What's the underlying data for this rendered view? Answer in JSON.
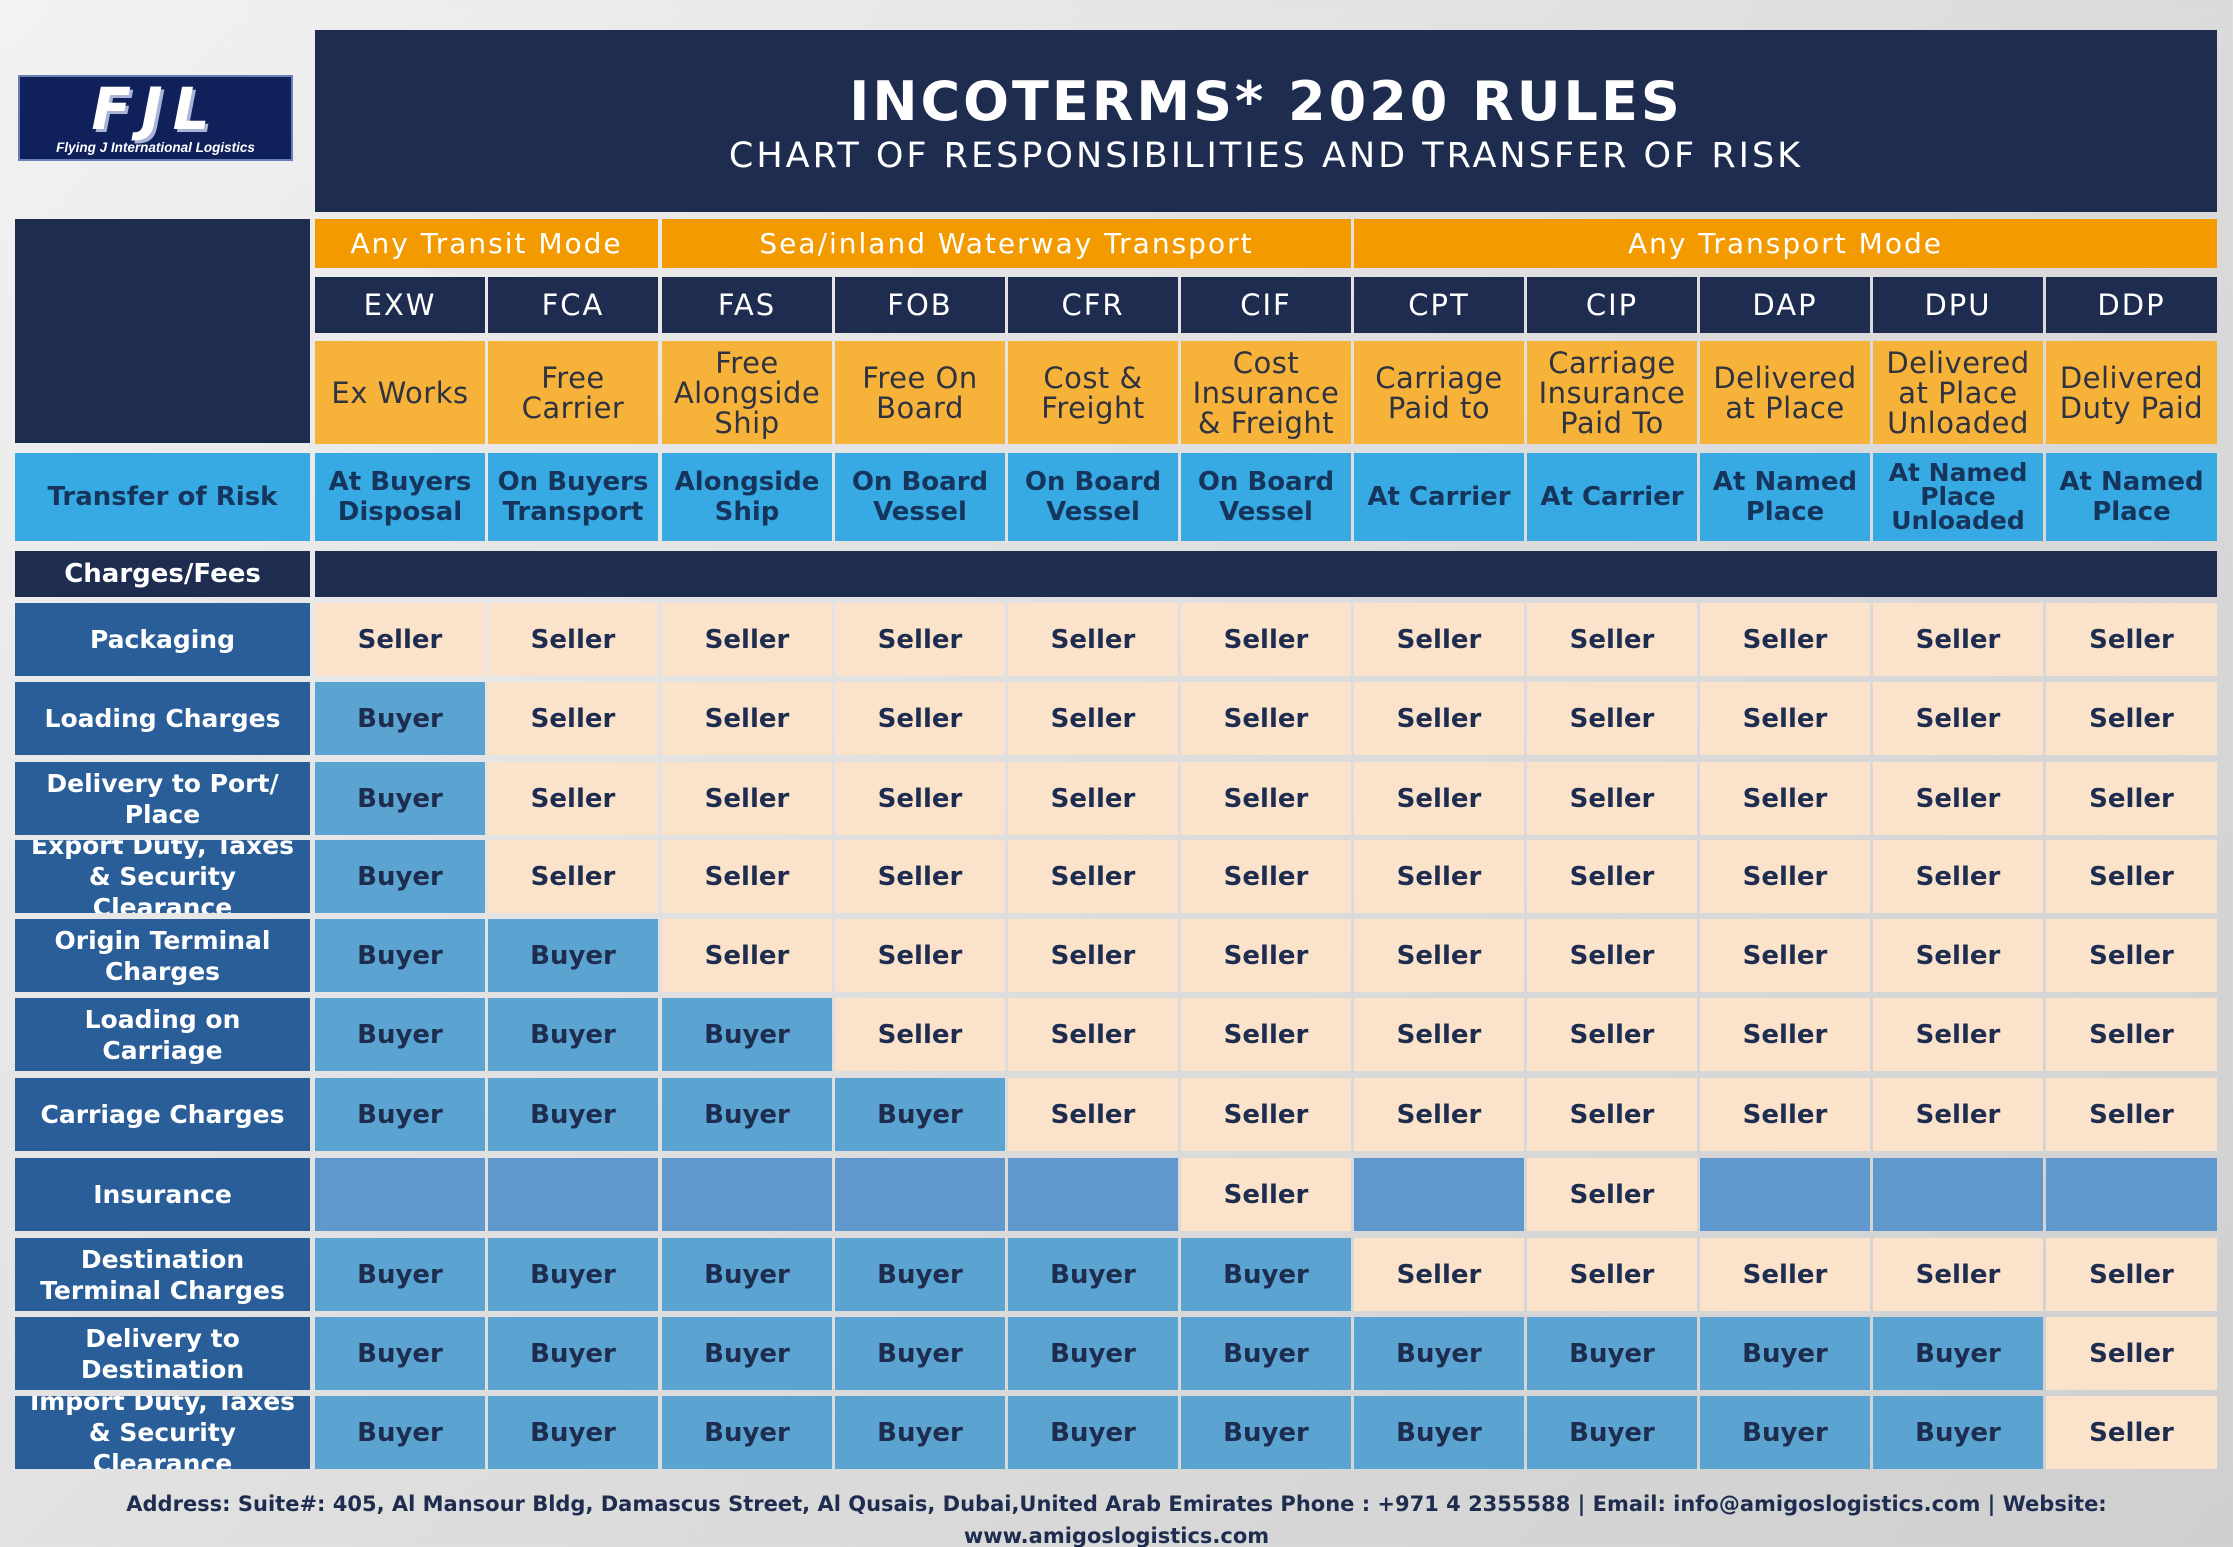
{
  "logo": {
    "mark": "FJL",
    "company": "Flying J International Logistics"
  },
  "header": {
    "title": "INCOTERMS* 2020 RULES",
    "subtitle": "CHART OF RESPONSIBILITIES AND TRANSFER OF RISK"
  },
  "groups": [
    "Any Transit Mode",
    "Sea/inland Waterway Transport",
    "Any Transport Mode"
  ],
  "terms": [
    {
      "code": "EXW",
      "name": "Ex Works",
      "risk": "At Buyers\nDisposal"
    },
    {
      "code": "FCA",
      "name": "Free\nCarrier",
      "risk": "On Buyers\nTransport"
    },
    {
      "code": "FAS",
      "name": "Free\nAlongside\nShip",
      "risk": "Alongside\nShip"
    },
    {
      "code": "FOB",
      "name": "Free On\nBoard",
      "risk": "On Board\nVessel"
    },
    {
      "code": "CFR",
      "name": "Cost &\nFreight",
      "risk": "On Board\nVessel"
    },
    {
      "code": "CIF",
      "name": "Cost\nInsurance\n& Freight",
      "risk": "On Board\nVessel"
    },
    {
      "code": "CPT",
      "name": "Carriage\nPaid to",
      "risk": "At Carrier"
    },
    {
      "code": "CIP",
      "name": "Carriage\nInsurance\nPaid To",
      "risk": "At Carrier"
    },
    {
      "code": "DAP",
      "name": "Delivered\nat Place",
      "risk": "At Named\nPlace"
    },
    {
      "code": "DPU",
      "name": "Delivered\nat Place\nUnloaded",
      "risk": "At Named\nPlace\nUnloaded"
    },
    {
      "code": "DDP",
      "name": "Delivered\nDuty Paid",
      "risk": "At Named\nPlace"
    }
  ],
  "risk_label": "Transfer of Risk",
  "charges_label": "Charges/Fees",
  "rows": [
    {
      "label": "Packaging",
      "values": [
        "Seller",
        "Seller",
        "Seller",
        "Seller",
        "Seller",
        "Seller",
        "Seller",
        "Seller",
        "Seller",
        "Seller",
        "Seller"
      ]
    },
    {
      "label": "Loading Charges",
      "values": [
        "Buyer",
        "Seller",
        "Seller",
        "Seller",
        "Seller",
        "Seller",
        "Seller",
        "Seller",
        "Seller",
        "Seller",
        "Seller"
      ]
    },
    {
      "label": "Delivery to Port/\nPlace",
      "values": [
        "Buyer",
        "Seller",
        "Seller",
        "Seller",
        "Seller",
        "Seller",
        "Seller",
        "Seller",
        "Seller",
        "Seller",
        "Seller"
      ]
    },
    {
      "label": "Export Duty, Taxes\n& Security Clearance",
      "values": [
        "Buyer",
        "Seller",
        "Seller",
        "Seller",
        "Seller",
        "Seller",
        "Seller",
        "Seller",
        "Seller",
        "Seller",
        "Seller"
      ]
    },
    {
      "label": "Origin Terminal\nCharges",
      "values": [
        "Buyer",
        "Buyer",
        "Seller",
        "Seller",
        "Seller",
        "Seller",
        "Seller",
        "Seller",
        "Seller",
        "Seller",
        "Seller"
      ]
    },
    {
      "label": "Loading on\nCarriage",
      "values": [
        "Buyer",
        "Buyer",
        "Buyer",
        "Seller",
        "Seller",
        "Seller",
        "Seller",
        "Seller",
        "Seller",
        "Seller",
        "Seller"
      ]
    },
    {
      "label": "Carriage Charges",
      "values": [
        "Buyer",
        "Buyer",
        "Buyer",
        "Buyer",
        "Seller",
        "Seller",
        "Seller",
        "Seller",
        "Seller",
        "Seller",
        "Seller"
      ]
    },
    {
      "label": "Insurance",
      "values": [
        "",
        "",
        "",
        "",
        "",
        "Seller",
        "",
        "Seller",
        "",
        "",
        ""
      ]
    },
    {
      "label": "Destination\nTerminal Charges",
      "values": [
        "Buyer",
        "Buyer",
        "Buyer",
        "Buyer",
        "Buyer",
        "Buyer",
        "Seller",
        "Seller",
        "Seller",
        "Seller",
        "Seller"
      ]
    },
    {
      "label": "Delivery to\nDestination",
      "values": [
        "Buyer",
        "Buyer",
        "Buyer",
        "Buyer",
        "Buyer",
        "Buyer",
        "Buyer",
        "Buyer",
        "Buyer",
        "Buyer",
        "Seller"
      ]
    },
    {
      "label": "Import Duty, Taxes\n& Security Clearance",
      "values": [
        "Buyer",
        "Buyer",
        "Buyer",
        "Buyer",
        "Buyer",
        "Buyer",
        "Buyer",
        "Buyer",
        "Buyer",
        "Buyer",
        "Seller"
      ]
    }
  ],
  "footer": "Address:  Suite#: 405, Al Mansour Bldg, Damascus Street, Al Qusais, Dubai,United Arab Emirates  Phone : +971 4 2355588  |  Email: info@amigoslogistics.com  |  Website: www.amigoslogistics.com",
  "colors": {
    "navy": "#1e2d4f",
    "orange": "#f39a00",
    "orange_light": "#f7b23a",
    "risk_blue": "#37aae3",
    "row_label_blue": "#2a5e98",
    "seller_fill": "#fbe3cb",
    "buyer_fill": "#5ba4d1",
    "blank_fill": "#6097cc"
  }
}
